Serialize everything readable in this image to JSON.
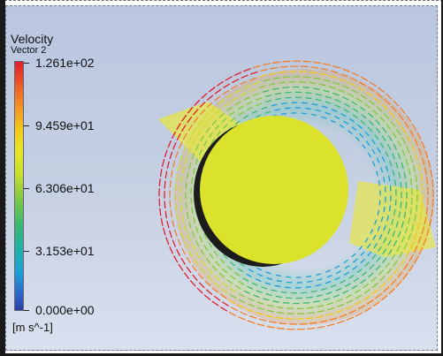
{
  "legend": {
    "title": "Velocity",
    "subtitle": "Vector 2",
    "units": "[m s^-1]",
    "ticks": [
      "1.261e+02",
      "9.459e+01",
      "6.306e+01",
      "3.153e+01",
      "0.000e+00"
    ]
  },
  "colors": {
    "max": "#e01f2a",
    "high": "#f2c81b",
    "mid": "#7fc844",
    "low": "#1e9fd6",
    "min": "#2b3e9e",
    "core": "#dbe22c"
  }
}
